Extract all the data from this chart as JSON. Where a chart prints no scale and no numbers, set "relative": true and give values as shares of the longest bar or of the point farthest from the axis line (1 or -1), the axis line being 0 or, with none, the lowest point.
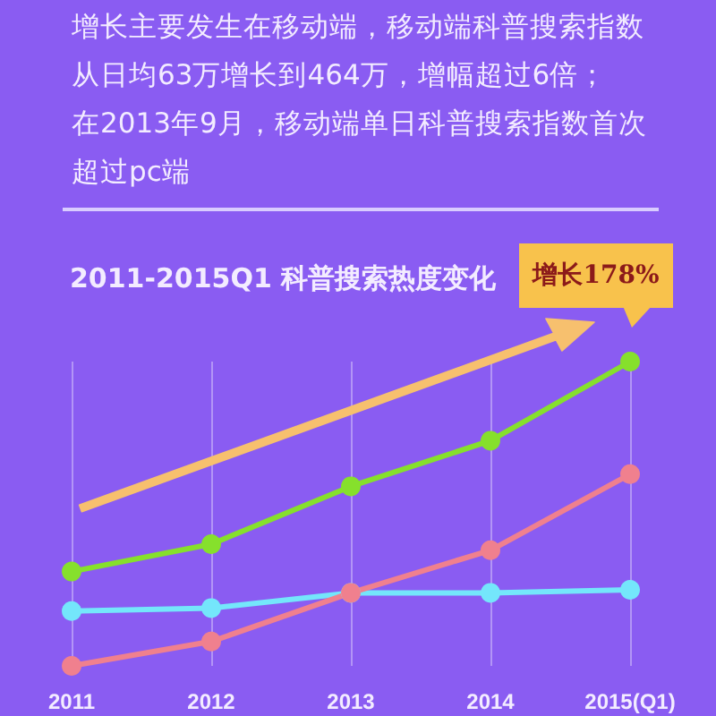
{
  "chart_data": {
    "type": "line",
    "title": "2011-2015Q1 科普搜索热度变化",
    "relative": true,
    "categories": [
      "2011",
      "2012",
      "2013",
      "2014",
      "2015(Q1)"
    ],
    "series": [
      {
        "color": "#86e02c",
        "values": [
          0.31,
          0.4,
          0.59,
          0.74,
          1
        ]
      },
      {
        "color": "#74e6fb",
        "values": [
          0.18,
          0.19,
          0.24,
          0.24,
          0.25
        ]
      },
      {
        "color": "#f0808e",
        "values": [
          0,
          0.08,
          0.24,
          0.38,
          0.63
        ]
      }
    ],
    "annotations": [
      "增长主要发生在移动端，移动端科普搜索指数",
      "从日均63万增长到464万，增幅超过6倍；",
      "在2013年9月，移动端单日科普搜索指数首次",
      "超过pc端",
      "增长178%"
    ],
    "grid": "x",
    "marker": "circle",
    "line_style": "solid"
  }
}
